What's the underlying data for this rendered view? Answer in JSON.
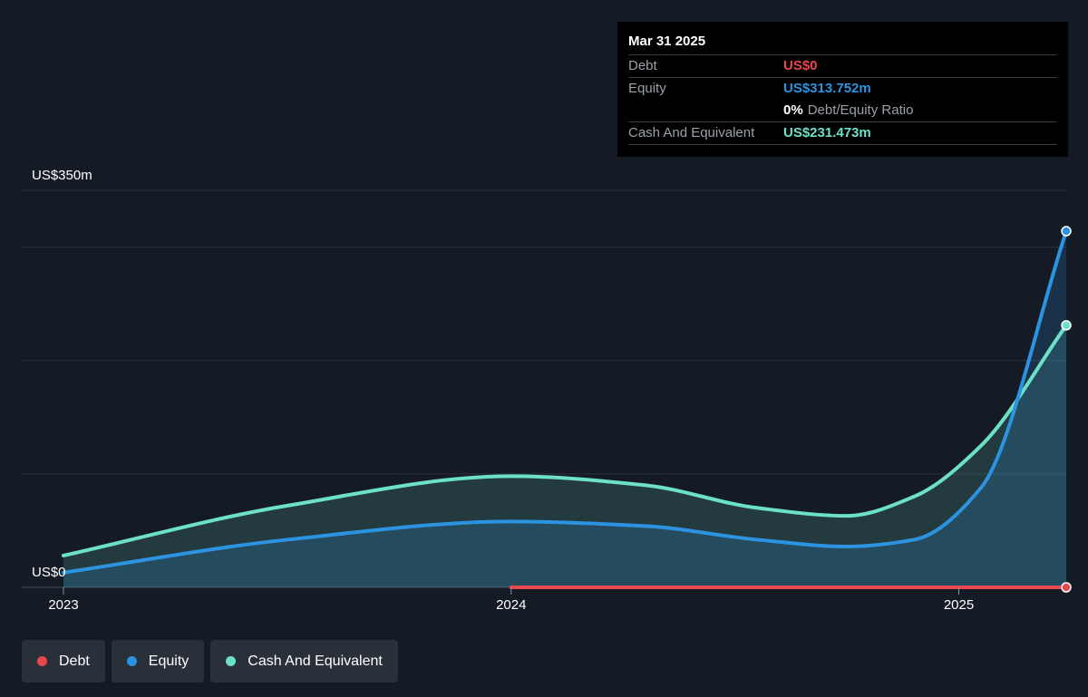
{
  "tooltip": {
    "date": "Mar 31 2025",
    "rows": [
      {
        "label": "Debt",
        "value": "US$0",
        "color": "#e8474d"
      },
      {
        "label": "Equity",
        "value": "US$313.752m",
        "color": "#2c93e0"
      },
      {
        "label": "Cash And Equivalent",
        "value": "US$231.473m",
        "color": "#6de0c8"
      }
    ],
    "ratio_pct": "0%",
    "ratio_label": "Debt/Equity Ratio"
  },
  "legend": [
    {
      "label": "Debt",
      "color": "#e8474d"
    },
    {
      "label": "Equity",
      "color": "#2c93e0"
    },
    {
      "label": "Cash And Equivalent",
      "color": "#6de0c8"
    }
  ],
  "chart_data": {
    "type": "area",
    "y_label_top": "US$350m",
    "y_label_bottom": "US$0",
    "ylim": [
      0,
      350
    ],
    "xlim": [
      2023.0,
      2025.24
    ],
    "x_ticks": [
      {
        "value": 2023,
        "label": "2023"
      },
      {
        "value": 2024,
        "label": "2024"
      },
      {
        "value": 2025,
        "label": "2025"
      }
    ],
    "gridlines": [
      0,
      100,
      200,
      300,
      350
    ],
    "series": [
      {
        "name": "Cash And Equivalent",
        "color": "#6de0c8",
        "x": [
          2023.0,
          2023.5,
          2024.0,
          2024.3,
          2024.55,
          2024.75,
          2024.9,
          2025.05,
          2025.24
        ],
        "y": [
          28,
          72,
          98,
          90,
          70,
          63,
          80,
          125,
          231
        ]
      },
      {
        "name": "Equity",
        "color": "#2c93e0",
        "x": [
          2023.0,
          2023.5,
          2024.0,
          2024.3,
          2024.55,
          2024.75,
          2024.9,
          2025.05,
          2025.24
        ],
        "y": [
          13,
          42,
          58,
          54,
          42,
          36,
          42,
          88,
          314
        ]
      },
      {
        "name": "Debt",
        "color": "#e8474d",
        "x": [
          2024.0,
          2025.24
        ],
        "y": [
          0,
          0
        ]
      }
    ]
  }
}
